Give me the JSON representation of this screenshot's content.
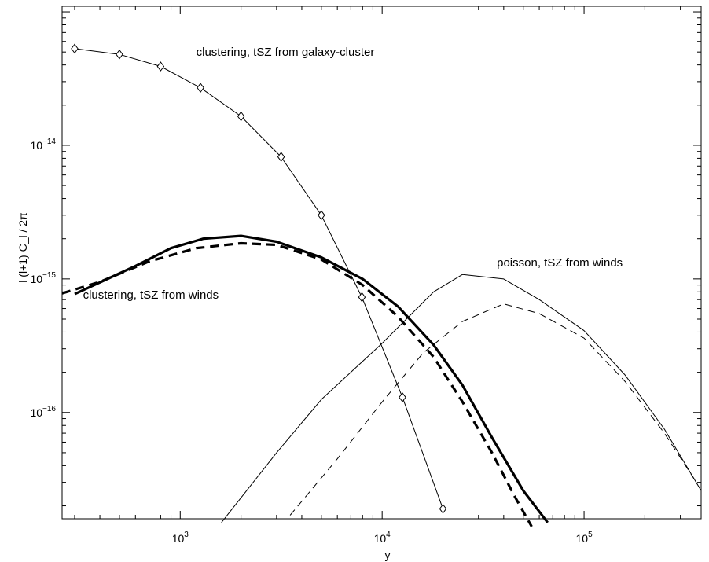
{
  "chart_data": {
    "type": "line",
    "title": "",
    "xlabel": "y",
    "ylabel": "l (l+1) C_l / 2π",
    "x_scale": "log",
    "y_scale": "log",
    "xlim": [
      260,
      380000
    ],
    "ylim": [
      1.6e-17,
      1.1e-13
    ],
    "grid": false,
    "x_ticks": [
      {
        "value": 1000,
        "base": "10",
        "exp": "3"
      },
      {
        "value": 10000,
        "base": "10",
        "exp": "4"
      },
      {
        "value": 100000,
        "base": "10",
        "exp": "5"
      }
    ],
    "y_ticks": [
      {
        "value": 1e-14,
        "base": "10",
        "exp": "−14"
      },
      {
        "value": 1e-15,
        "base": "10",
        "exp": "−15"
      },
      {
        "value": 1e-16,
        "base": "10",
        "exp": "−16"
      }
    ],
    "series": [
      {
        "style": "thin-solid-diamond",
        "points": [
          [
            300,
            5.3e-14
          ],
          [
            500,
            4.8e-14
          ],
          [
            800,
            3.9e-14
          ],
          [
            1260,
            2.7e-14
          ],
          [
            2000,
            1.65e-14
          ],
          [
            3160,
            8.2e-15
          ],
          [
            5000,
            3e-15
          ],
          [
            7940,
            7.3e-16
          ],
          [
            12600,
            1.3e-16
          ],
          [
            20000,
            1.9e-17
          ]
        ]
      },
      {
        "style": "thick-solid",
        "points": [
          [
            300,
            7.7e-16
          ],
          [
            600,
            1.25e-15
          ],
          [
            900,
            1.7e-15
          ],
          [
            1300,
            2e-15
          ],
          [
            2000,
            2.1e-15
          ],
          [
            3000,
            1.9e-15
          ],
          [
            5000,
            1.45e-15
          ],
          [
            8000,
            1e-15
          ],
          [
            12000,
            6.2e-16
          ],
          [
            18000,
            3.2e-16
          ],
          [
            25000,
            1.6e-16
          ],
          [
            35000,
            6.5e-17
          ],
          [
            50000,
            2.6e-17
          ],
          [
            66000,
            1.5e-17
          ]
        ]
      },
      {
        "style": "thick-dashed",
        "points": [
          [
            260,
            7.8e-16
          ],
          [
            400,
            9.5e-16
          ],
          [
            700,
            1.35e-15
          ],
          [
            1200,
            1.7e-15
          ],
          [
            2000,
            1.85e-15
          ],
          [
            3000,
            1.8e-15
          ],
          [
            5000,
            1.4e-15
          ],
          [
            8000,
            9e-16
          ],
          [
            12000,
            5.2e-16
          ],
          [
            18000,
            2.6e-16
          ],
          [
            25000,
            1.2e-16
          ],
          [
            35000,
            5e-17
          ],
          [
            45000,
            2.4e-17
          ],
          [
            55000,
            1.4e-17
          ]
        ]
      },
      {
        "style": "thin-solid",
        "points": [
          [
            1600,
            1.5e-17
          ],
          [
            3000,
            5e-17
          ],
          [
            5000,
            1.25e-16
          ],
          [
            10000,
            3.3e-16
          ],
          [
            18000,
            8e-16
          ],
          [
            25000,
            1.08e-15
          ],
          [
            40000,
            1e-15
          ],
          [
            60000,
            7e-16
          ],
          [
            100000,
            4.1e-16
          ],
          [
            160000,
            1.9e-16
          ],
          [
            250000,
            7.5e-17
          ],
          [
            380000,
            2.6e-17
          ]
        ]
      },
      {
        "style": "thin-dashed",
        "points": [
          [
            3500,
            1.7e-17
          ],
          [
            6000,
            4.5e-17
          ],
          [
            10000,
            1.2e-16
          ],
          [
            16000,
            2.8e-16
          ],
          [
            25000,
            4.8e-16
          ],
          [
            40000,
            6.5e-16
          ],
          [
            60000,
            5.5e-16
          ],
          [
            100000,
            3.6e-16
          ],
          [
            160000,
            1.7e-16
          ],
          [
            250000,
            7e-17
          ],
          [
            360000,
            3e-17
          ]
        ]
      }
    ],
    "annotations": [
      {
        "text": "clustering, tSZ from galaxy-cluster",
        "x": 1200,
        "y": 5e-14
      },
      {
        "text": "clustering, tSZ from winds",
        "x": 330,
        "y": 7.6e-16
      },
      {
        "text": "poisson, tSZ from winds",
        "x": 37000,
        "y": 1.33e-15
      }
    ]
  }
}
